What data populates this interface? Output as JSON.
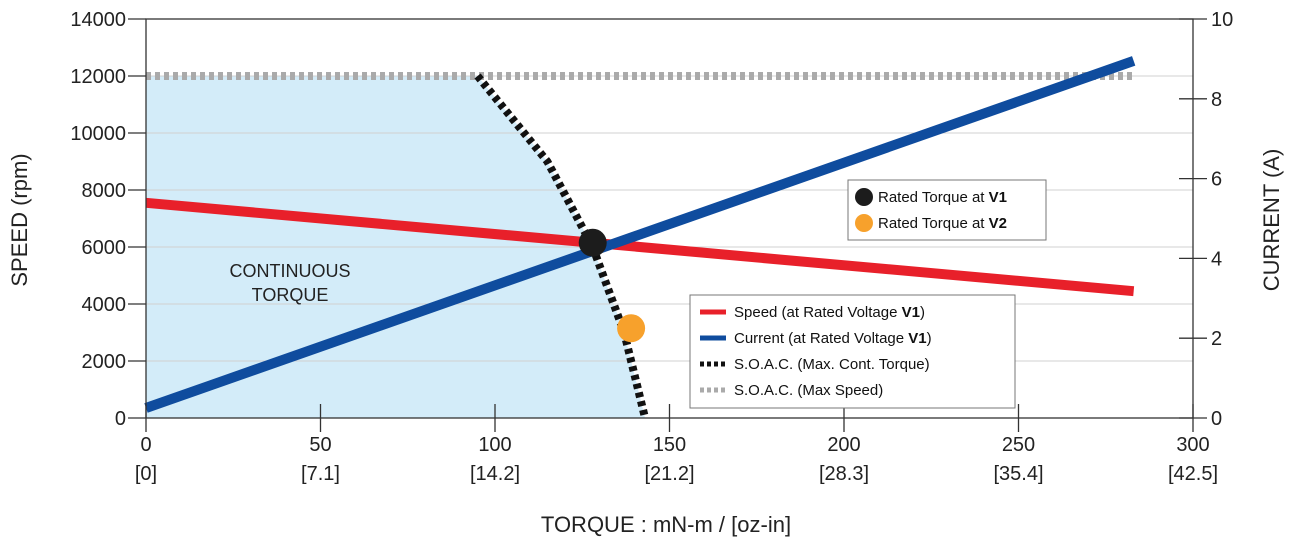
{
  "chart_data": {
    "type": "line",
    "xlabel": "TORQUE : mN-m / [oz-in]",
    "ylabel": "SPEED (rpm)",
    "y2label": "CURRENT (A)",
    "xlim": [
      0,
      300
    ],
    "ylim": [
      0,
      14000
    ],
    "y2lim": [
      0,
      10
    ],
    "grid": "horizontal",
    "x_ticks": [
      {
        "value": 0,
        "label": "0",
        "sublabel": "[0]"
      },
      {
        "value": 50,
        "label": "50",
        "sublabel": "[7.1]"
      },
      {
        "value": 100,
        "label": "100",
        "sublabel": "[14.2]"
      },
      {
        "value": 150,
        "label": "150",
        "sublabel": "[21.2]"
      },
      {
        "value": 200,
        "label": "200",
        "sublabel": "[28.3]"
      },
      {
        "value": 250,
        "label": "250",
        "sublabel": "[35.4]"
      },
      {
        "value": 300,
        "label": "300",
        "sublabel": "[42.5]"
      }
    ],
    "y_ticks": [
      "0",
      "2000",
      "4000",
      "6000",
      "8000",
      "10000",
      "12000",
      "14000"
    ],
    "y2_ticks": [
      "0",
      "2",
      "4",
      "6",
      "8",
      "10"
    ],
    "series": [
      {
        "name": "Speed (at Rated Voltage V1)",
        "axis": "left",
        "color": "#e8202a",
        "style": "solid",
        "x": [
          0,
          283
        ],
        "y": [
          7550,
          4450
        ]
      },
      {
        "name": "Current (at Rated Voltage V1)",
        "axis": "right",
        "color": "#0f4c9e",
        "style": "solid",
        "x": [
          0,
          283
        ],
        "y": [
          0.25,
          8.95
        ]
      },
      {
        "name": "S.O.A.C. (Max. Cont. Torque)",
        "axis": "left",
        "color": "#111111",
        "style": "dashed",
        "x": [
          95,
          115,
          128,
          137,
          143
        ],
        "y": [
          12000,
          9000,
          6000,
          3000,
          0
        ]
      },
      {
        "name": "S.O.A.C. (Max Speed)",
        "axis": "left",
        "color": "#aaaaaa",
        "style": "dashed",
        "x": [
          0,
          283
        ],
        "y": [
          12000,
          12000
        ]
      }
    ],
    "region": {
      "label_lines": [
        "CONTINUOUS",
        "TORQUE"
      ],
      "color": "#d3ecf9",
      "boundary": [
        [
          0,
          0
        ],
        [
          0,
          12000
        ],
        [
          95,
          12000
        ],
        [
          115,
          9000
        ],
        [
          128,
          6000
        ],
        [
          137,
          3000
        ],
        [
          143,
          0
        ]
      ]
    },
    "points": [
      {
        "name": "Rated Torque at V1",
        "x": 128,
        "y": 6150,
        "color": "#1c1c1c"
      },
      {
        "name": "Rated Torque at V2",
        "x": 139,
        "y": 3150,
        "color": "#f7a12c"
      }
    ],
    "legend": {
      "placement": "lower-center",
      "items": [
        {
          "text": "Speed (at Rated Voltage ",
          "bold": "V1",
          "suffix": ")",
          "color": "#e8202a",
          "style": "solid"
        },
        {
          "text": "Current (at Rated Voltage ",
          "bold": "V1",
          "suffix": ")",
          "color": "#0f4c9e",
          "style": "solid"
        },
        {
          "text": "S.O.A.C. (Max. Cont. Torque)",
          "bold": "",
          "suffix": "",
          "color": "#111111",
          "style": "dashed"
        },
        {
          "text": "S.O.A.C. (Max Speed)",
          "bold": "",
          "suffix": "",
          "color": "#aaaaaa",
          "style": "dashed"
        }
      ]
    },
    "points_legend": {
      "placement": "upper-center",
      "items": [
        {
          "text": "Rated Torque at ",
          "bold": "V1",
          "color": "#1c1c1c"
        },
        {
          "text": "Rated Torque at ",
          "bold": "V2",
          "color": "#f7a12c"
        }
      ]
    }
  }
}
